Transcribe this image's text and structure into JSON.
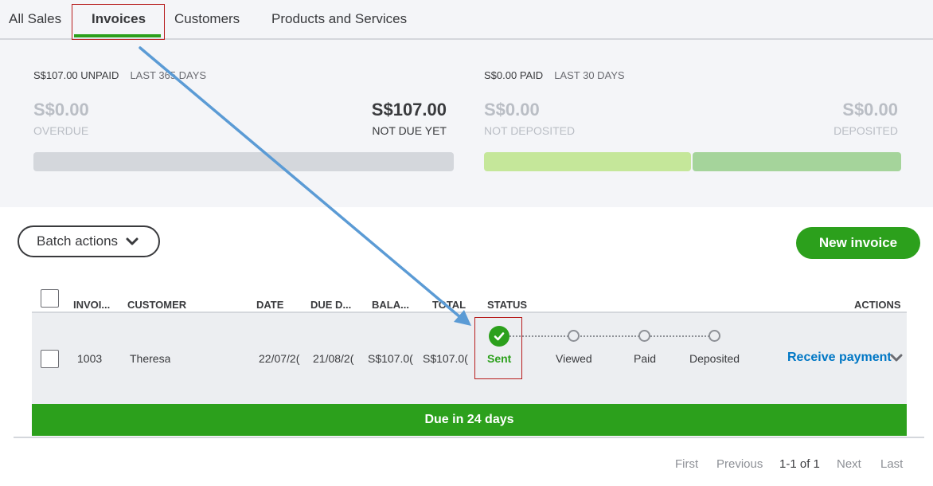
{
  "tabs": [
    {
      "label": "All Sales",
      "active": false
    },
    {
      "label": "Invoices",
      "active": true
    },
    {
      "label": "Customers",
      "active": false
    },
    {
      "label": "Products and Services",
      "active": false
    }
  ],
  "summary": {
    "unpaid": {
      "heading": "S$107.00 UNPAID",
      "period": "LAST 365 DAYS",
      "overdue_amount": "S$0.00",
      "overdue_label": "OVERDUE",
      "not_due_amount": "S$107.00",
      "not_due_label": "NOT DUE YET"
    },
    "paid": {
      "heading": "S$0.00 PAID",
      "period": "LAST 30 DAYS",
      "not_deposited_amount": "S$0.00",
      "not_deposited_label": "NOT DEPOSITED",
      "deposited_amount": "S$0.00",
      "deposited_label": "DEPOSITED"
    }
  },
  "toolbar": {
    "batch_actions_label": "Batch actions",
    "new_invoice_label": "New invoice"
  },
  "table": {
    "columns": {
      "invoice": "INVOI...",
      "customer": "CUSTOMER",
      "date": "DATE",
      "due_date": "DUE D...",
      "balance": "BALA...",
      "total": "TOTAL",
      "status": "STATUS",
      "actions": "ACTIONS"
    },
    "rows": [
      {
        "invoice": "1003",
        "customer": "Theresa",
        "date": "22/07/2(",
        "due_date": "21/08/2(",
        "balance": "S$107.0(",
        "total": "S$107.0(",
        "status_steps": [
          "Sent",
          "Viewed",
          "Paid",
          "Deposited"
        ],
        "action_label": "Receive payment",
        "due_message": "Due in 24 days"
      }
    ]
  },
  "pagination": {
    "first": "First",
    "previous": "Previous",
    "range": "1-1 of 1",
    "next": "Next",
    "last": "Last"
  },
  "colors": {
    "accent_green": "#2ca01c",
    "link_blue": "#0077c5",
    "annotation_red": "#b71c1c",
    "annotation_arrow": "#5b9bd5",
    "not_deposited_bar": "#c5e79a",
    "deposited_bar": "#a5d49b",
    "unpaid_bar": "#d4d7dc"
  }
}
